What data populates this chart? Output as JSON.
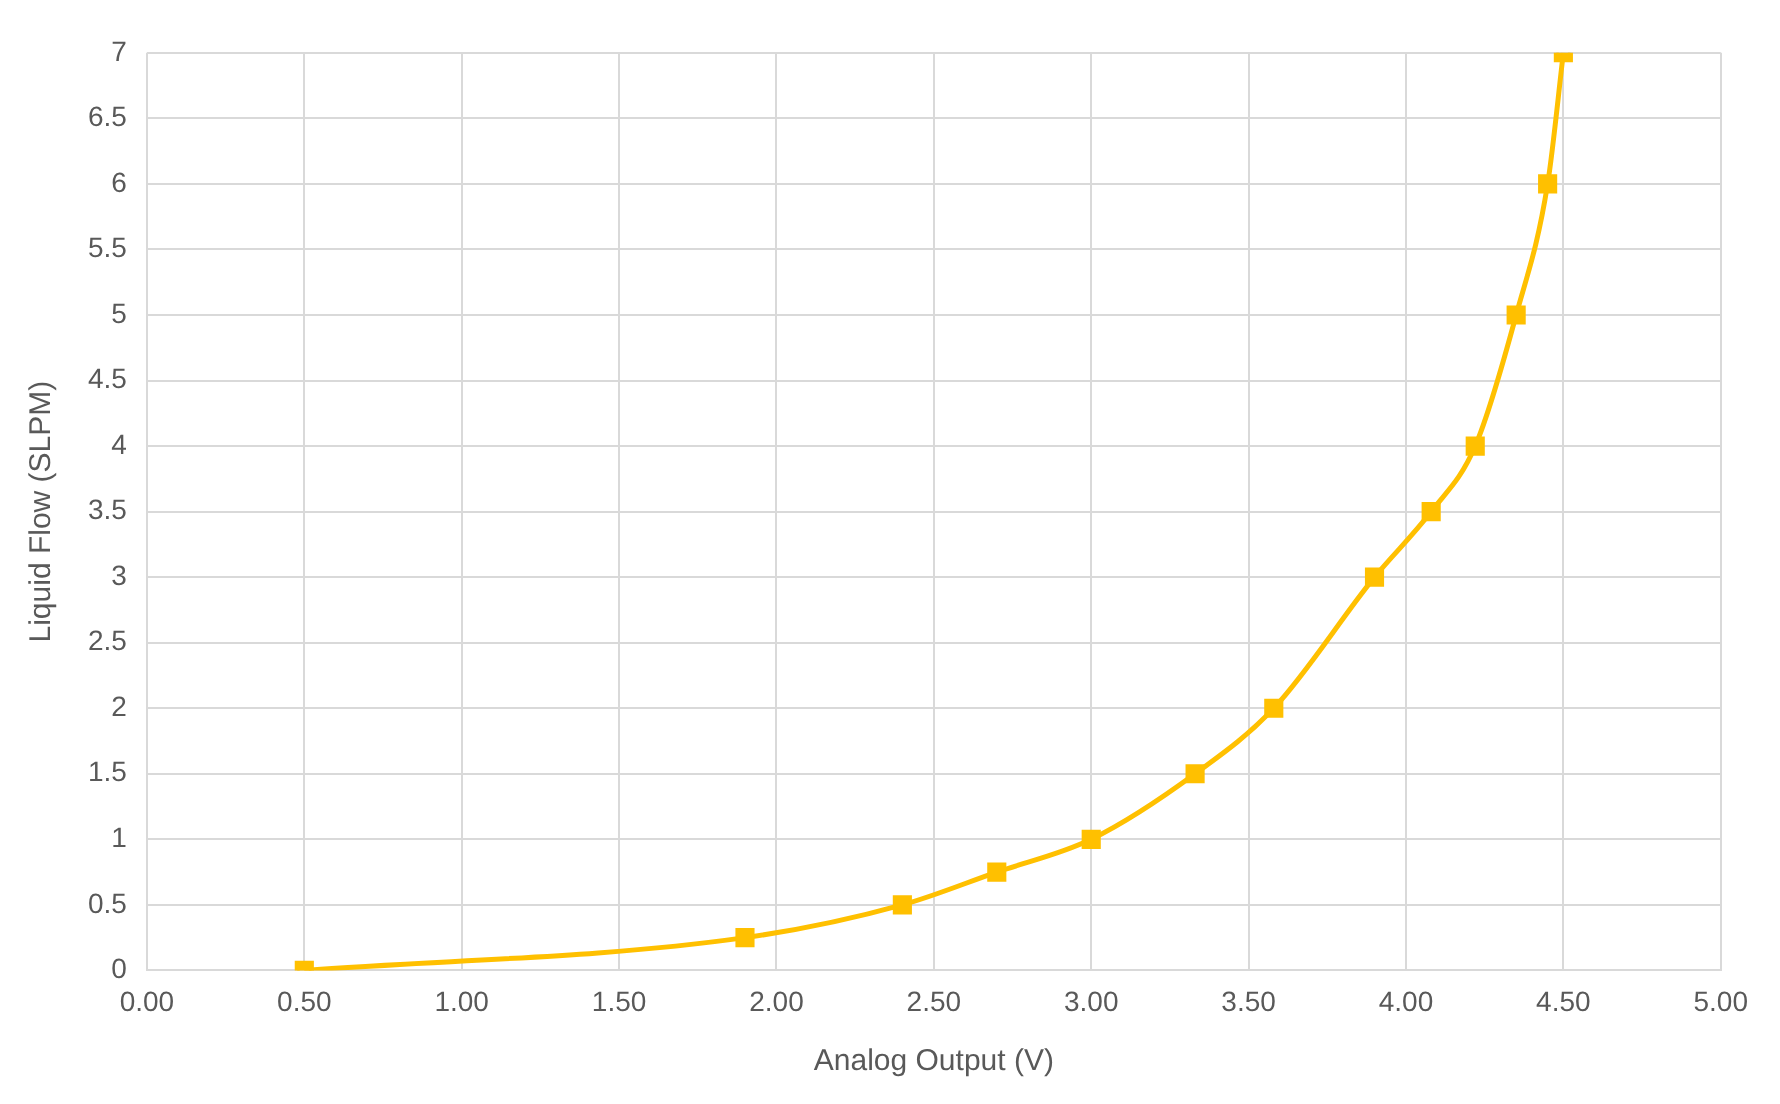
{
  "chart_data": {
    "type": "line",
    "xlabel": "Analog Output (V)",
    "ylabel": "Liquid Flow (SLPM)",
    "x": [
      0.5,
      1.9,
      2.4,
      2.7,
      3.0,
      3.33,
      3.58,
      3.9,
      4.08,
      4.22,
      4.35,
      4.45,
      4.5
    ],
    "series": [
      {
        "color": "#ffc000",
        "values": [
          0,
          0.25,
          0.5,
          0.75,
          1.0,
          1.5,
          2.0,
          3.0,
          3.5,
          4.0,
          5.0,
          6.0,
          7.0
        ]
      }
    ],
    "xlim": [
      0,
      5
    ],
    "xticks": [
      {
        "value": 0,
        "label": "0.00"
      },
      {
        "value": 0.5,
        "label": "0.50"
      },
      {
        "value": 1,
        "label": "1.00"
      },
      {
        "value": 1.5,
        "label": "1.50"
      },
      {
        "value": 2,
        "label": "2.00"
      },
      {
        "value": 2.5,
        "label": "2.50"
      },
      {
        "value": 3,
        "label": "3.00"
      },
      {
        "value": 3.5,
        "label": "3.50"
      },
      {
        "value": 4,
        "label": "4.00"
      },
      {
        "value": 4.5,
        "label": "4.50"
      },
      {
        "value": 5,
        "label": "5.00"
      }
    ],
    "ylim": [
      0,
      7
    ],
    "yticks": [
      0,
      0.5,
      1,
      1.5,
      2,
      2.5,
      3,
      3.5,
      4,
      4.5,
      5,
      5.5,
      6,
      6.5,
      7
    ],
    "grid": true,
    "legend": false,
    "marker": "square",
    "line_style": "solid"
  }
}
